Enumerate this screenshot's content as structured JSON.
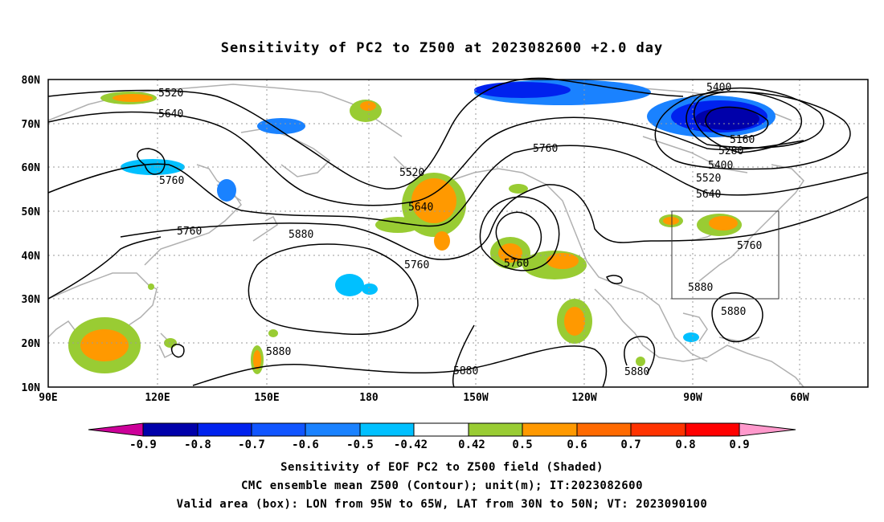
{
  "title": "Sensitivity of PC2 to Z500 at 2023082600 +2.0 day",
  "lat_labels": [
    "80N",
    "70N",
    "60N",
    "50N",
    "40N",
    "30N",
    "20N",
    "10N"
  ],
  "lon_labels": [
    "90E",
    "120E",
    "150E",
    "180",
    "150W",
    "120W",
    "90W",
    "60W"
  ],
  "contour_labels": [
    "5520",
    "5640",
    "5760",
    "5520",
    "5640",
    "5760",
    "5880",
    "5760",
    "5760",
    "5880",
    "5400",
    "5160",
    "5280",
    "5400",
    "5520",
    "5640",
    "5760",
    "5880",
    "5880",
    "5880",
    "5880",
    "5880"
  ],
  "colorbar": {
    "colors": [
      "#cc0099",
      "#0000aa",
      "#0022ee",
      "#1155ff",
      "#1a82ff",
      "#00c0ff",
      "#ffffff",
      "#99cc33",
      "#ff9900",
      "#ff6a00",
      "#ff3300",
      "#ff0000",
      "#ff99cc"
    ],
    "labels": [
      "-0.9",
      "-0.8",
      "-0.7",
      "-0.6",
      "-0.5",
      "-0.42",
      "0.42",
      "0.5",
      "0.6",
      "0.7",
      "0.8",
      "0.9"
    ]
  },
  "caption": {
    "line1": "Sensitivity of EOF PC2 to Z500 field (Shaded)",
    "line2": "CMC ensemble mean Z500 (Contour); unit(m); IT:2023082600",
    "line3": "Valid area (box): LON from 95W to 65W, LAT from 30N to 50N; VT: 2023090100"
  }
}
